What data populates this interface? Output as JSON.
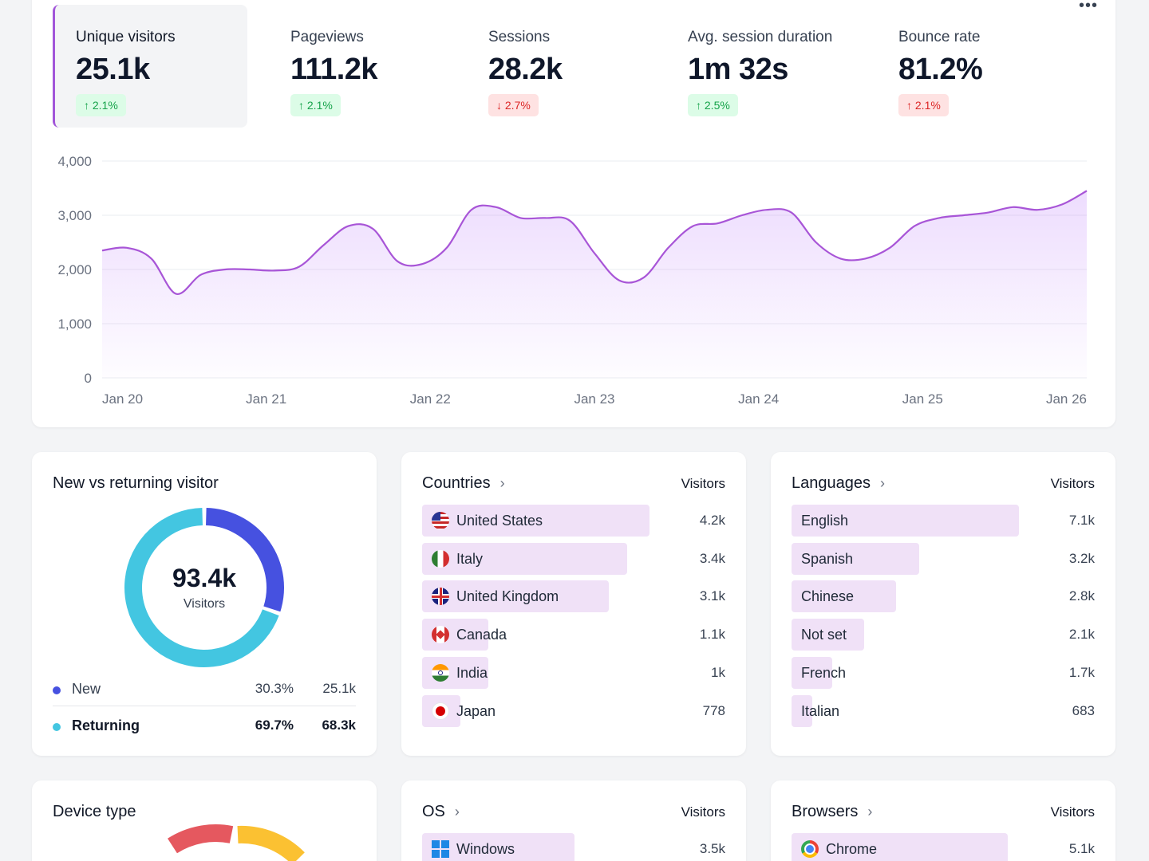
{
  "metrics": [
    {
      "label": "Unique visitors",
      "value": "25.1k",
      "delta": "2.1%",
      "dir": "up",
      "good": true,
      "active": true
    },
    {
      "label": "Pageviews",
      "value": "111.2k",
      "delta": "2.1%",
      "dir": "up",
      "good": true,
      "active": false
    },
    {
      "label": "Sessions",
      "value": "28.2k",
      "delta": "2.7%",
      "dir": "down",
      "good": false,
      "active": false
    },
    {
      "label": "Avg. session duration",
      "value": "1m 32s",
      "delta": "2.5%",
      "dir": "up",
      "good": true,
      "active": false
    },
    {
      "label": "Bounce rate",
      "value": "81.2%",
      "delta": "2.1%",
      "dir": "up",
      "good": false,
      "active": false
    }
  ],
  "more_label": "•••",
  "chart_data": {
    "type": "area",
    "x_ticks": [
      "Jan 20",
      "Jan 21",
      "Jan 22",
      "Jan 23",
      "Jan 24",
      "Jan 25",
      "Jan 26"
    ],
    "y_ticks": [
      "4,000",
      "3,000",
      "2,000",
      "1,000",
      "0"
    ],
    "ylim": [
      0,
      4000
    ],
    "grid": true,
    "color": "#a855d7",
    "series": [
      {
        "values": [
          2350,
          2400,
          2200,
          1550,
          1900,
          2000,
          2000,
          1980,
          2050,
          2450,
          2800,
          2750,
          2150,
          2100,
          2400,
          3100,
          3150,
          2950,
          2950,
          2900,
          2300,
          1800,
          1850,
          2400,
          2800,
          2850,
          3000,
          3100,
          3050,
          2500,
          2200,
          2200,
          2400,
          2800,
          2950,
          3000,
          3050,
          3150,
          3100,
          3200,
          3450
        ]
      }
    ]
  },
  "visitors_panel": {
    "title": "New vs returning visitor",
    "total": "93.4k",
    "total_label": "Visitors",
    "segments": [
      {
        "name": "New",
        "pct": "30.3%",
        "count": "25.1k",
        "share": 0.303,
        "color": "#4651e0"
      },
      {
        "name": "Returning",
        "pct": "69.7%",
        "count": "68.3k",
        "share": 0.697,
        "color": "#43c6e1"
      }
    ]
  },
  "countries": {
    "title": "Countries",
    "col": "Visitors",
    "rows": [
      {
        "name": "United States",
        "value": "4.2k",
        "share": 1.0,
        "flag": "us"
      },
      {
        "name": "Italy",
        "value": "3.4k",
        "share": 0.9,
        "flag": "it"
      },
      {
        "name": "United Kingdom",
        "value": "3.1k",
        "share": 0.82,
        "flag": "gb"
      },
      {
        "name": "Canada",
        "value": "1.1k",
        "share": 0.29,
        "flag": "ca"
      },
      {
        "name": "India",
        "value": "1k",
        "share": 0.29,
        "flag": "in"
      },
      {
        "name": "Japan",
        "value": "778",
        "share": 0.17,
        "flag": "jp"
      }
    ]
  },
  "languages": {
    "title": "Languages",
    "col": "Visitors",
    "rows": [
      {
        "name": "English",
        "value": "7.1k",
        "share": 1.0
      },
      {
        "name": "Spanish",
        "value": "3.2k",
        "share": 0.56
      },
      {
        "name": "Chinese",
        "value": "2.8k",
        "share": 0.46
      },
      {
        "name": "Not set",
        "value": "2.1k",
        "share": 0.32
      },
      {
        "name": "French",
        "value": "1.7k",
        "share": 0.18
      },
      {
        "name": "Italian",
        "value": "683",
        "share": 0.09
      }
    ]
  },
  "device": {
    "title": "Device type"
  },
  "os": {
    "title": "OS",
    "col": "Visitors",
    "rows": [
      {
        "name": "Windows",
        "value": "3.5k",
        "share": 0.67,
        "icon": "windows-icon"
      }
    ]
  },
  "browsers": {
    "title": "Browsers",
    "col": "Visitors",
    "rows": [
      {
        "name": "Chrome",
        "value": "5.1k",
        "share": 0.95,
        "icon": "chrome-icon"
      }
    ]
  }
}
